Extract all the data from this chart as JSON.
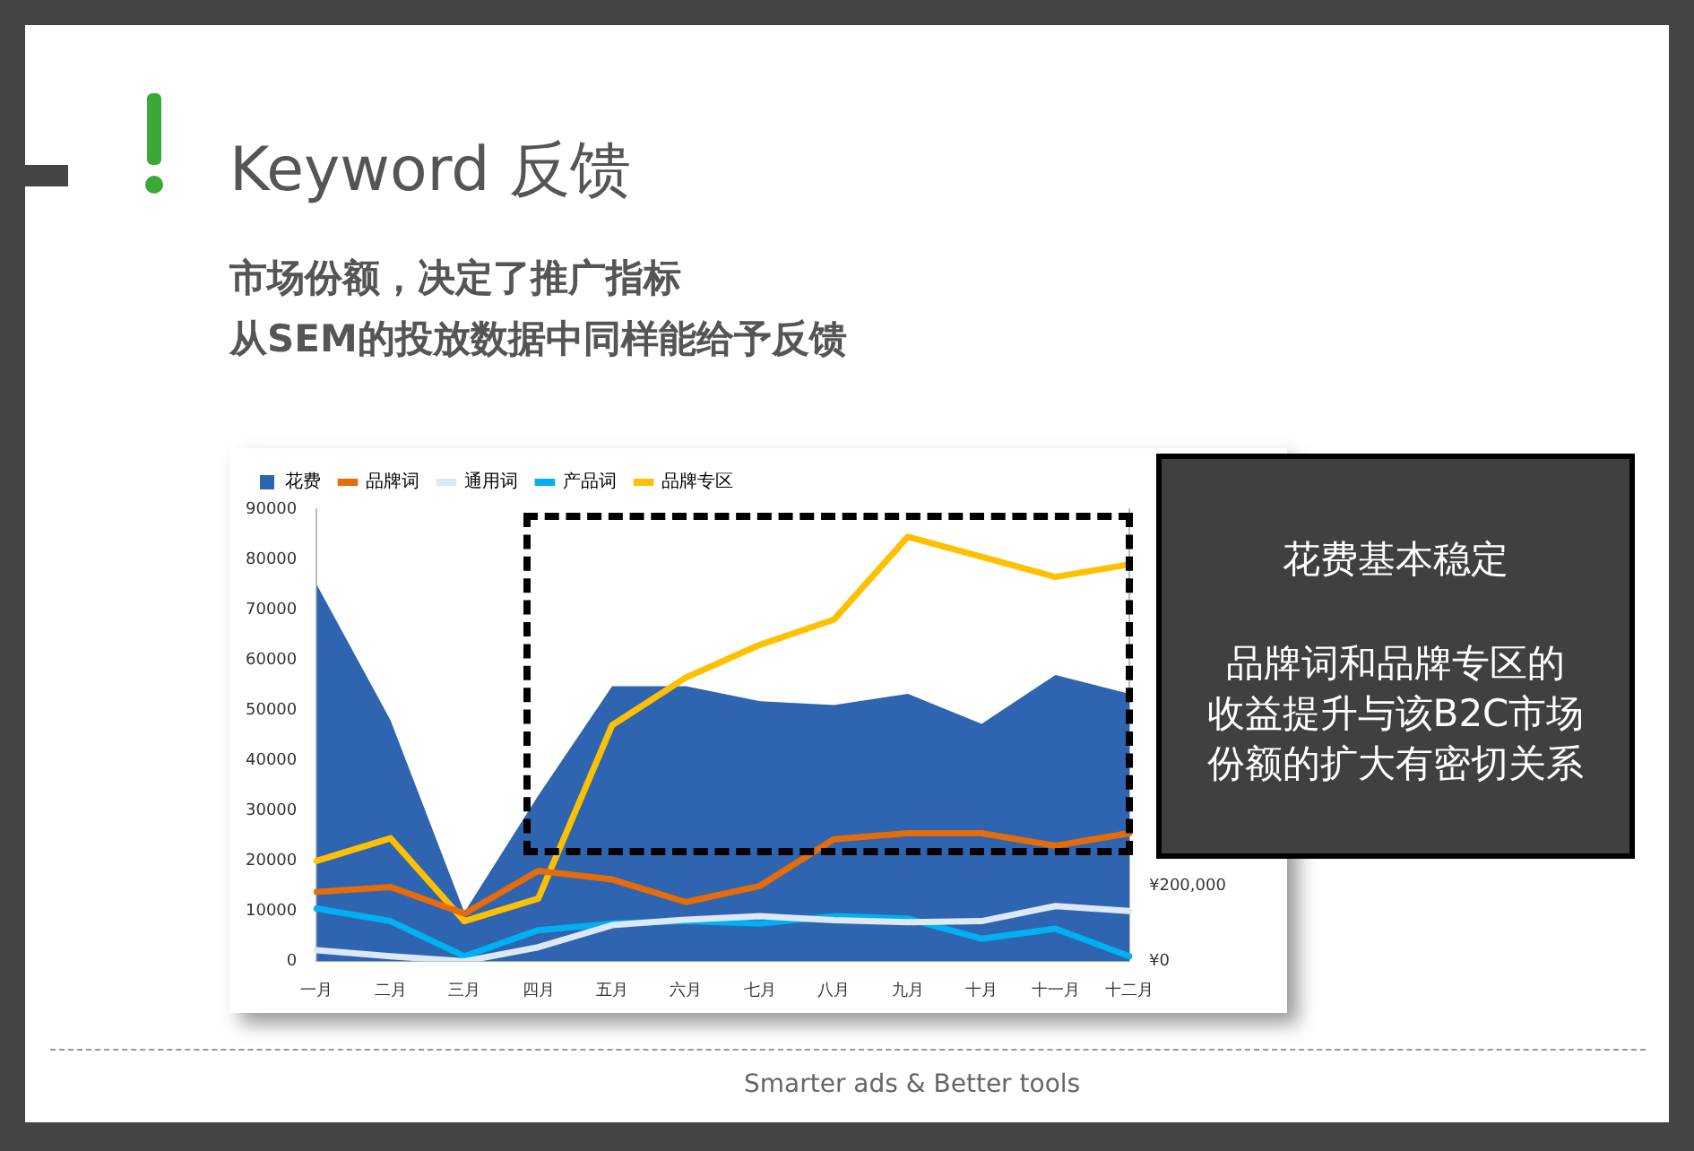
{
  "chart_data": {
    "type": "line",
    "title": "Keyword 反馈",
    "subtitle": "市场份额，决定了推广指标",
    "categories": [
      "一月",
      "二月",
      "三月",
      "四月",
      "五月",
      "六月",
      "七月",
      "八月",
      "九月",
      "十月",
      "十一月",
      "十二月"
    ],
    "series": [
      {
        "name": "花费",
        "type": "area",
        "axis": "y2",
        "color": "#2e64b0",
        "values": [
          1000000,
          640000,
          130000,
          440000,
          730000,
          730000,
          690000,
          680000,
          710000,
          630000,
          760000,
          710000
        ]
      },
      {
        "name": "品牌词",
        "color": "#e46c0a",
        "values": [
          13800,
          14800,
          9500,
          18000,
          16300,
          11800,
          15000,
          24300,
          25500,
          25500,
          23000,
          25500
        ]
      },
      {
        "name": "通用词",
        "color": "#dce8f2",
        "values": [
          2200,
          1000,
          0,
          2800,
          7200,
          8300,
          9000,
          8200,
          7800,
          8000,
          11000,
          10000
        ]
      },
      {
        "name": "产品词",
        "color": "#00b0f0",
        "values": [
          10500,
          8000,
          1000,
          6200,
          7500,
          8000,
          7500,
          9000,
          8500,
          4500,
          6500,
          1000
        ]
      },
      {
        "name": "品牌专区",
        "color": "#ffc000",
        "values": [
          20000,
          24500,
          8000,
          12500,
          47000,
          56500,
          63000,
          68000,
          84500,
          80500,
          76500,
          79000
        ]
      }
    ],
    "ylim": [
      0,
      90000
    ],
    "yticks": [
      0,
      10000,
      20000,
      30000,
      40000,
      50000,
      60000,
      70000,
      80000,
      90000
    ],
    "y2lim": [
      0,
      1200000
    ],
    "y2ticks": [
      {
        "value": 0,
        "label": "¥0"
      },
      {
        "value": 200000,
        "label": "¥200,000"
      }
    ],
    "grid": false,
    "legend": "top left",
    "marker": "none",
    "annotations": [
      "从SEM的投放数据中同样能给予反馈",
      "花费基本稳定",
      "品牌词和品牌专区的",
      "收益提升与该B2C市场",
      "份额的扩大有密切关系",
      "Smarter ads & Better tools"
    ]
  }
}
